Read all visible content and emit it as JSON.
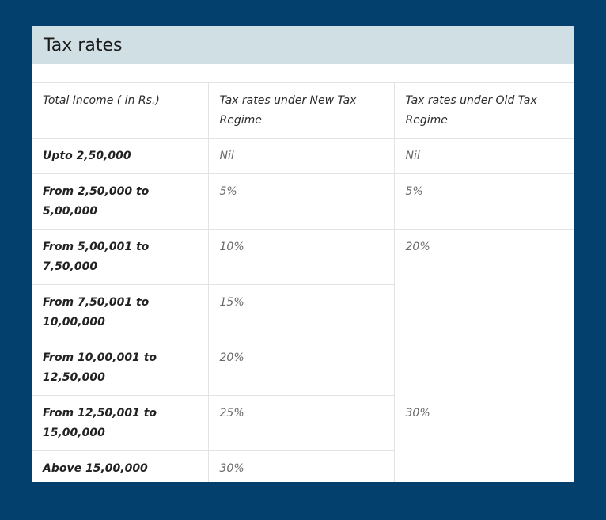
{
  "title": "Tax rates",
  "columns": [
    "Total Income ( in Rs.)",
    "Tax rates under New Tax Regime",
    "Tax rates under Old Tax Regime"
  ],
  "rows": [
    {
      "income": "Upto 2,50,000",
      "new": "Nil",
      "old": "Nil"
    },
    {
      "income": "From 2,50,000 to 5,00,000",
      "new": "5%",
      "old": "5%"
    },
    {
      "income": "From 5,00,001 to 7,50,000",
      "new": "10%",
      "old": "20%"
    },
    {
      "income": "From 7,50,001 to 10,00,000",
      "new": "15%"
    },
    {
      "income": "From 10,00,001 to 12,50,000",
      "new": "20%",
      "old": "30%"
    },
    {
      "income": "From 12,50,001 to 15,00,000",
      "new": "25%"
    },
    {
      "income": "Above 15,00,000",
      "new": "30%"
    }
  ],
  "colors": {
    "page_background": "#03406e",
    "header_background": "#d0dfe4",
    "card_background": "#ffffff"
  }
}
